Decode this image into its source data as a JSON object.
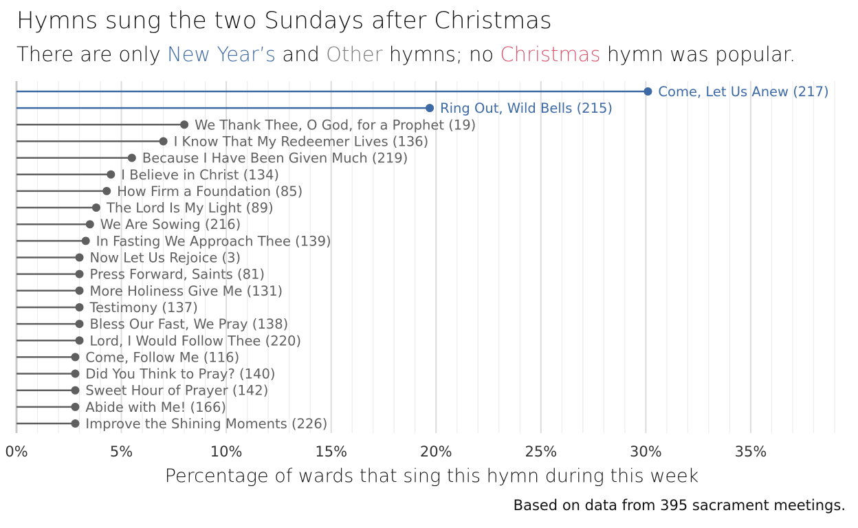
{
  "title": "Hymns sung the two Sundays after Christmas",
  "subtitle": {
    "p1": "There are only ",
    "new_years": "New Year’s",
    "p2": " and ",
    "other": "Other",
    "p3": " hymns; no ",
    "christmas": "Christmas",
    "p4": " hymn was popular."
  },
  "caption": "Based on data from 395 sacrament meetings.",
  "colors": {
    "new_years": "#3d6aa5",
    "other": "#5f5f5f",
    "christmas": "#d9566f"
  },
  "chart_data": {
    "type": "lollipop",
    "xlabel": "Percentage of wards that sing this hymn during this week",
    "xlim": [
      0,
      39
    ],
    "xticks": [
      {
        "v": 0,
        "label": "0%"
      },
      {
        "v": 5,
        "label": "5%"
      },
      {
        "v": 10,
        "label": "10%"
      },
      {
        "v": 15,
        "label": "15%"
      },
      {
        "v": 20,
        "label": "20%"
      },
      {
        "v": 25,
        "label": "25%"
      },
      {
        "v": 30,
        "label": "30%"
      },
      {
        "v": 35,
        "label": "35%"
      }
    ],
    "grid": true,
    "items": [
      {
        "label": "Come, Let Us Anew (217)",
        "value": 30.1,
        "category": "new_years"
      },
      {
        "label": "Ring Out, Wild Bells (215)",
        "value": 19.7,
        "category": "new_years"
      },
      {
        "label": "We Thank Thee, O God, for a Prophet (19)",
        "value": 8.0,
        "category": "other"
      },
      {
        "label": "I Know That My Redeemer Lives (136)",
        "value": 7.0,
        "category": "other"
      },
      {
        "label": "Because I Have Been Given Much (219)",
        "value": 5.5,
        "category": "other"
      },
      {
        "label": "I Believe in Christ (134)",
        "value": 4.5,
        "category": "other"
      },
      {
        "label": "How Firm a Foundation (85)",
        "value": 4.3,
        "category": "other"
      },
      {
        "label": "The Lord Is My Light (89)",
        "value": 3.8,
        "category": "other"
      },
      {
        "label": "We Are Sowing (216)",
        "value": 3.5,
        "category": "other"
      },
      {
        "label": "In Fasting We Approach Thee (139)",
        "value": 3.3,
        "category": "other"
      },
      {
        "label": "Now Let Us Rejoice (3)",
        "value": 3.0,
        "category": "other"
      },
      {
        "label": "Press Forward, Saints (81)",
        "value": 3.0,
        "category": "other"
      },
      {
        "label": "More Holiness Give Me (131)",
        "value": 3.0,
        "category": "other"
      },
      {
        "label": "Testimony (137)",
        "value": 3.0,
        "category": "other"
      },
      {
        "label": "Bless Our Fast, We Pray (138)",
        "value": 3.0,
        "category": "other"
      },
      {
        "label": "Lord, I Would Follow Thee (220)",
        "value": 3.0,
        "category": "other"
      },
      {
        "label": "Come, Follow Me (116)",
        "value": 2.8,
        "category": "other"
      },
      {
        "label": "Did You Think to Pray? (140)",
        "value": 2.8,
        "category": "other"
      },
      {
        "label": "Sweet Hour of Prayer (142)",
        "value": 2.8,
        "category": "other"
      },
      {
        "label": "Abide with Me! (166)",
        "value": 2.8,
        "category": "other"
      },
      {
        "label": "Improve the Shining Moments (226)",
        "value": 2.8,
        "category": "other"
      }
    ]
  }
}
